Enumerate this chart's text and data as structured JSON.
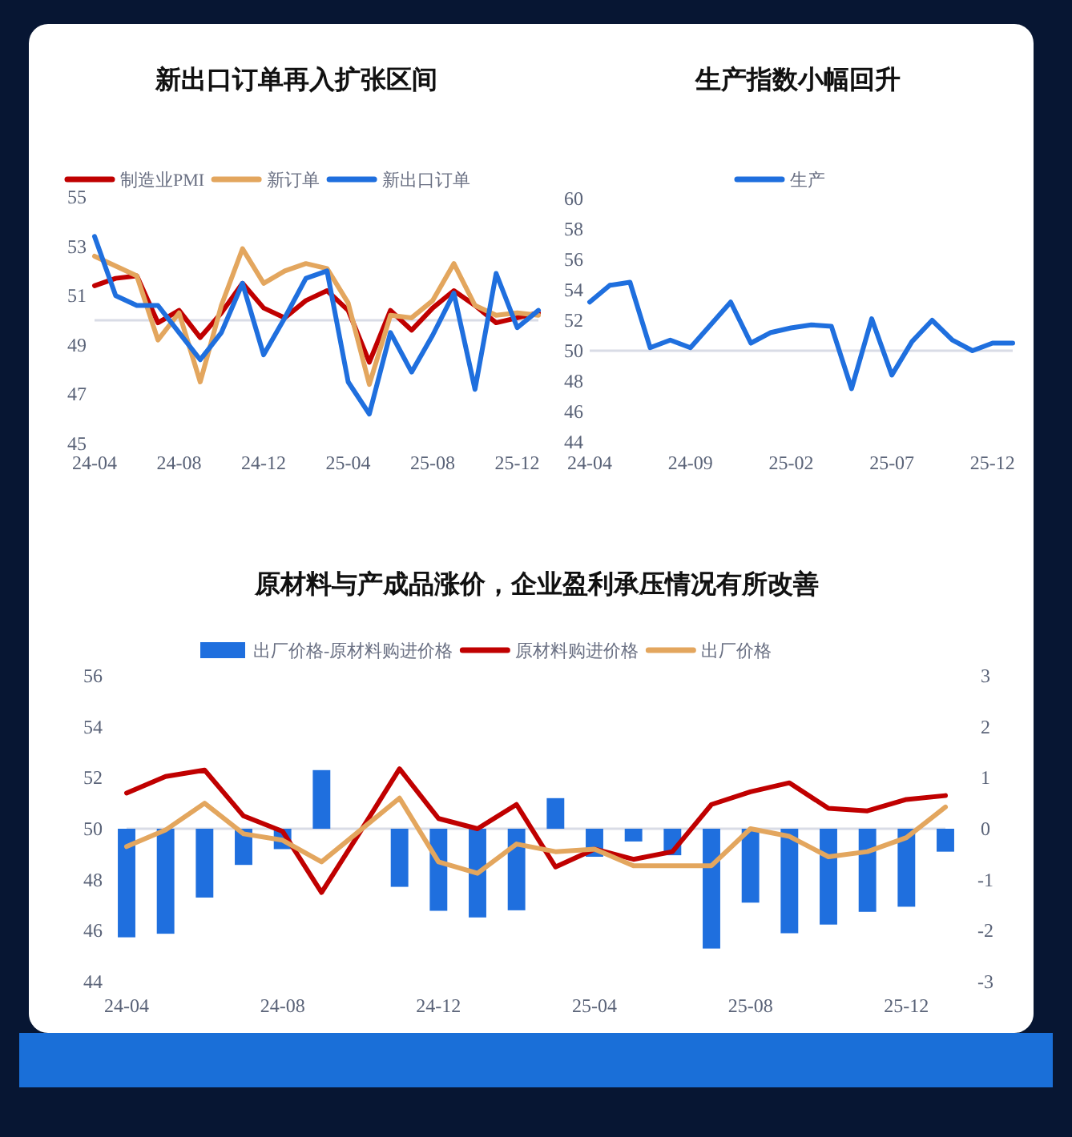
{
  "chart_data": [
    {
      "type": "line",
      "title": "新出口订单再入扩张区间",
      "categories": [
        "24-04",
        null,
        null,
        null,
        "24-08",
        null,
        null,
        null,
        "24-12",
        null,
        null,
        null,
        "25-04",
        null,
        null,
        null,
        "25-08",
        null,
        null,
        null,
        "25-12",
        null
      ],
      "series": [
        {
          "name": "制造业PMI",
          "color": "#c00000",
          "values": [
            51.4,
            51.7,
            51.8,
            49.9,
            50.4,
            49.3,
            50.3,
            51.5,
            50.5,
            50.1,
            50.8,
            51.2,
            50.4,
            48.3,
            50.4,
            49.6,
            50.5,
            51.2,
            50.6,
            49.9,
            50.1,
            50.3
          ]
        },
        {
          "name": "新订单",
          "color": "#e3a65e",
          "values": [
            52.6,
            52.2,
            51.8,
            49.2,
            50.3,
            47.5,
            50.6,
            52.9,
            51.5,
            52.0,
            52.3,
            52.1,
            50.7,
            47.4,
            50.2,
            50.1,
            50.8,
            52.3,
            50.6,
            50.2,
            50.3,
            50.2
          ]
        },
        {
          "name": "新出口订单",
          "color": "#1f6fde",
          "values": [
            53.4,
            51.0,
            50.6,
            50.6,
            49.5,
            48.4,
            49.5,
            51.5,
            48.6,
            50.1,
            51.7,
            52.0,
            47.5,
            46.2,
            49.5,
            47.9,
            49.4,
            51.1,
            47.2,
            51.9,
            49.7,
            50.4
          ]
        }
      ],
      "ylim": [
        45,
        55
      ],
      "yticks": [
        45,
        47,
        49,
        51,
        53,
        55
      ],
      "ref_lines": [
        {
          "axis": "y",
          "value": 50,
          "color": "#d9dce6"
        }
      ],
      "legend": "top",
      "grid": false,
      "marker": "none",
      "line_style": "solid"
    },
    {
      "type": "line",
      "title": "生产指数小幅回升",
      "categories": [
        "24-04",
        null,
        null,
        null,
        null,
        "24-09",
        null,
        null,
        null,
        null,
        "25-02",
        null,
        null,
        null,
        null,
        "25-07",
        null,
        null,
        null,
        null,
        "25-12",
        null
      ],
      "series": [
        {
          "name": "生产",
          "color": "#1f6fde",
          "values": [
            53.2,
            54.3,
            54.5,
            50.2,
            50.7,
            50.2,
            51.7,
            53.2,
            50.5,
            51.2,
            51.5,
            51.7,
            51.6,
            47.5,
            52.1,
            48.4,
            50.6,
            52.0,
            50.7,
            50.0,
            50.5,
            50.5
          ]
        }
      ],
      "ylim": [
        44,
        60
      ],
      "yticks": [
        44,
        46,
        48,
        50,
        52,
        54,
        56,
        58,
        60
      ],
      "ref_lines": [
        {
          "axis": "y",
          "value": 50,
          "color": "#d9dce6"
        }
      ],
      "legend": "top",
      "grid": false,
      "marker": "none",
      "line_style": "solid"
    },
    {
      "type": "bar",
      "title": "原材料与产成品涨价，企业盈利承压情况有所改善",
      "categories": [
        "24-04",
        null,
        null,
        null,
        "24-08",
        null,
        null,
        null,
        "24-12",
        null,
        null,
        null,
        "25-04",
        null,
        null,
        null,
        "25-08",
        null,
        null,
        null,
        "25-12",
        null
      ],
      "series": [
        {
          "name": "出厂价格-原材料购进价格",
          "axis": "y2",
          "color": "#1f6fde",
          "values": [
            -2.13,
            -2.06,
            -1.35,
            -0.71,
            -0.4,
            1.15,
            0,
            -1.14,
            -1.61,
            -1.74,
            -1.6,
            0.6,
            -0.55,
            -0.25,
            -0.52,
            -2.35,
            -1.45,
            -2.05,
            -1.88,
            -1.63,
            -1.53,
            -0.45
          ]
        },
        {
          "name": "原材料购进价格",
          "type": "line",
          "color": "#c00000",
          "values": [
            51.4,
            52.05,
            52.3,
            50.5,
            49.9,
            47.5,
            49.9,
            52.35,
            50.4,
            50.0,
            50.95,
            48.5,
            49.2,
            48.8,
            49.1,
            50.95,
            51.45,
            51.8,
            50.8,
            50.7,
            51.15,
            51.3
          ]
        },
        {
          "name": "出厂价格",
          "type": "line",
          "color": "#e3a65e",
          "values": [
            49.3,
            49.95,
            51.0,
            49.8,
            49.55,
            48.7,
            49.95,
            51.2,
            48.7,
            48.25,
            49.4,
            49.1,
            49.2,
            48.55,
            48.55,
            48.55,
            50.0,
            49.7,
            48.9,
            49.1,
            49.65,
            50.85
          ]
        }
      ],
      "ylim": [
        44,
        56
      ],
      "yticks": [
        44,
        46,
        48,
        50,
        52,
        54,
        56
      ],
      "y2lim": [
        -3,
        3
      ],
      "y2ticks": [
        -3,
        -2,
        -1,
        0,
        1,
        2,
        3
      ],
      "ref_lines": [
        {
          "axis": "y",
          "value": 50,
          "color": "#d9dce6"
        }
      ],
      "legend": "top",
      "grid": false,
      "marker": "none",
      "line_style": "solid"
    }
  ]
}
